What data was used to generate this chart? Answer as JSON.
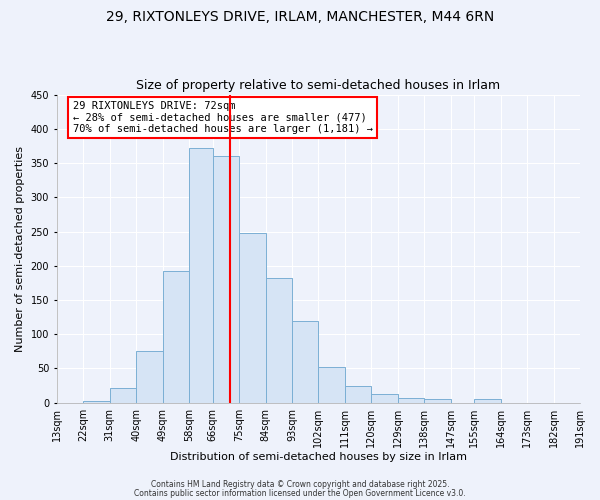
{
  "title": "29, RIXTONLEYS DRIVE, IRLAM, MANCHESTER, M44 6RN",
  "subtitle": "Size of property relative to semi-detached houses in Irlam",
  "xlabel": "Distribution of semi-detached houses by size in Irlam",
  "ylabel": "Number of semi-detached properties",
  "bin_labels": [
    "13sqm",
    "22sqm",
    "31sqm",
    "40sqm",
    "49sqm",
    "58sqm",
    "66sqm",
    "75sqm",
    "84sqm",
    "93sqm",
    "102sqm",
    "111sqm",
    "120sqm",
    "129sqm",
    "138sqm",
    "147sqm",
    "155sqm",
    "164sqm",
    "173sqm",
    "182sqm",
    "191sqm"
  ],
  "bin_edges": [
    13,
    22,
    31,
    40,
    49,
    58,
    66,
    75,
    84,
    93,
    102,
    111,
    120,
    129,
    138,
    147,
    155,
    164,
    173,
    182,
    191
  ],
  "bar_heights": [
    0,
    3,
    22,
    75,
    192,
    372,
    360,
    248,
    182,
    120,
    52,
    24,
    13,
    7,
    5,
    0,
    5,
    0,
    0,
    0
  ],
  "bar_color": "#d6e4f5",
  "bar_edgecolor": "#7bafd4",
  "property_value": 72,
  "vline_color": "red",
  "ylim": [
    0,
    450
  ],
  "yticks": [
    0,
    50,
    100,
    150,
    200,
    250,
    300,
    350,
    400,
    450
  ],
  "annotation_title": "29 RIXTONLEYS DRIVE: 72sqm",
  "annotation_line1": "← 28% of semi-detached houses are smaller (477)",
  "annotation_line2": "70% of semi-detached houses are larger (1,181) →",
  "footer1": "Contains HM Land Registry data © Crown copyright and database right 2025.",
  "footer2": "Contains public sector information licensed under the Open Government Licence v3.0.",
  "background_color": "#eef2fb",
  "plot_bg_color": "#eef2fb",
  "grid_color": "#ffffff",
  "title_fontsize": 10,
  "subtitle_fontsize": 9,
  "axis_label_fontsize": 8,
  "tick_fontsize": 7,
  "annotation_fontsize": 7.5,
  "footer_fontsize": 5.5
}
